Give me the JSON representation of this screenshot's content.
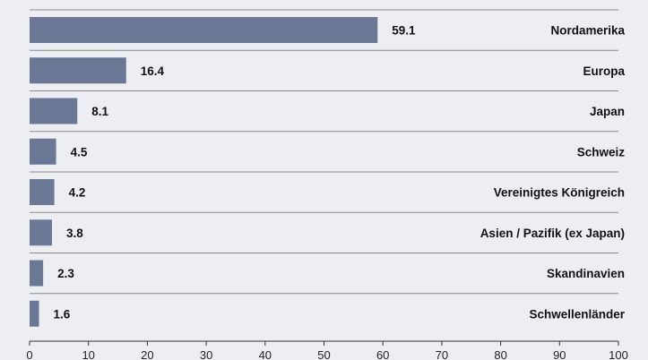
{
  "chart_data": {
    "type": "bar",
    "orientation": "horizontal",
    "categories": [
      "Nordamerika",
      "Europa",
      "Japan",
      "Schweiz",
      "Vereinigtes Königreich",
      "Asien / Pazifik (ex Japan)",
      "Skandinavien",
      "Schwellenländer"
    ],
    "values": [
      59.1,
      16.4,
      8.1,
      4.5,
      4.2,
      3.8,
      2.3,
      1.6
    ],
    "value_labels": [
      "59.1",
      "16.4",
      "8.1",
      "4.5",
      "4.2",
      "3.8",
      "2.3",
      "1.6"
    ],
    "xlim": [
      0,
      100
    ],
    "x_ticks": [
      "0",
      "10",
      "20",
      "30",
      "40",
      "50",
      "60",
      "70",
      "80",
      "90",
      "100"
    ],
    "grid": false,
    "legend": "none",
    "category_label_position": "right",
    "bar_color": "#6a7896",
    "background_color": "#eceef1"
  }
}
